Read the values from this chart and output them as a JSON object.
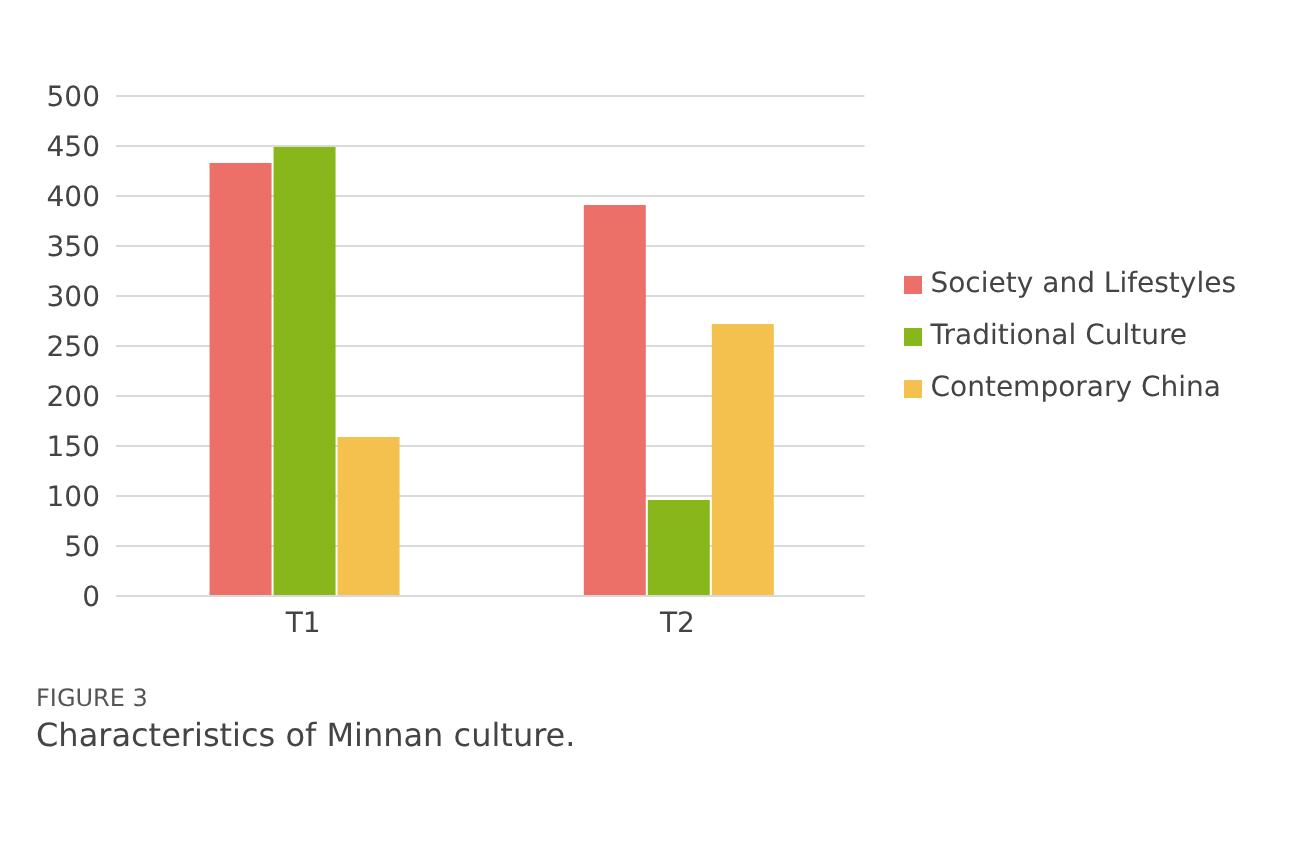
{
  "chart_data": {
    "type": "bar",
    "categories": [
      "T1",
      "T2"
    ],
    "series": [
      {
        "name": "Society and Lifestyles",
        "color": "#ec7068",
        "values": [
          433,
          391
        ]
      },
      {
        "name": "Traditional Culture",
        "color": "#88b71c",
        "values": [
          449,
          96
        ]
      },
      {
        "name": "Contemporary China",
        "color": "#f4c04e",
        "values": [
          159,
          272
        ]
      }
    ],
    "ylim": [
      0,
      500
    ],
    "yticks": [
      0,
      50,
      100,
      150,
      200,
      250,
      300,
      350,
      400,
      450,
      500
    ],
    "grid": "y",
    "legend": "right",
    "annotations": [
      "FIGURE 3",
      "Characteristics of Minnan culture."
    ]
  }
}
